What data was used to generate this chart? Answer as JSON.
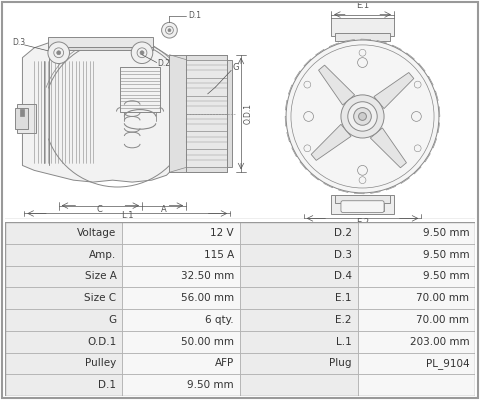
{
  "bg_color": "#ffffff",
  "table_data": [
    [
      "Voltage",
      "12 V",
      "D.2",
      "9.50 mm"
    ],
    [
      "Amp.",
      "115 A",
      "D.3",
      "9.50 mm"
    ],
    [
      "Size A",
      "32.50 mm",
      "D.4",
      "9.50 mm"
    ],
    [
      "Size C",
      "56.00 mm",
      "E.1",
      "70.00 mm"
    ],
    [
      "G",
      "6 qty.",
      "E.2",
      "70.00 mm"
    ],
    [
      "O.D.1",
      "50.00 mm",
      "L.1",
      "203.00 mm"
    ],
    [
      "Pulley",
      "AFP",
      "Plug",
      "PL_9104"
    ],
    [
      "D.1",
      "9.50 mm",
      "",
      ""
    ]
  ],
  "lc": "#888888",
  "dc": "#555555",
  "shade1": "#ececec",
  "shade2": "#f7f7f7",
  "text_color": "#333333",
  "border_color": "#aaaaaa",
  "font_size": 7.5
}
